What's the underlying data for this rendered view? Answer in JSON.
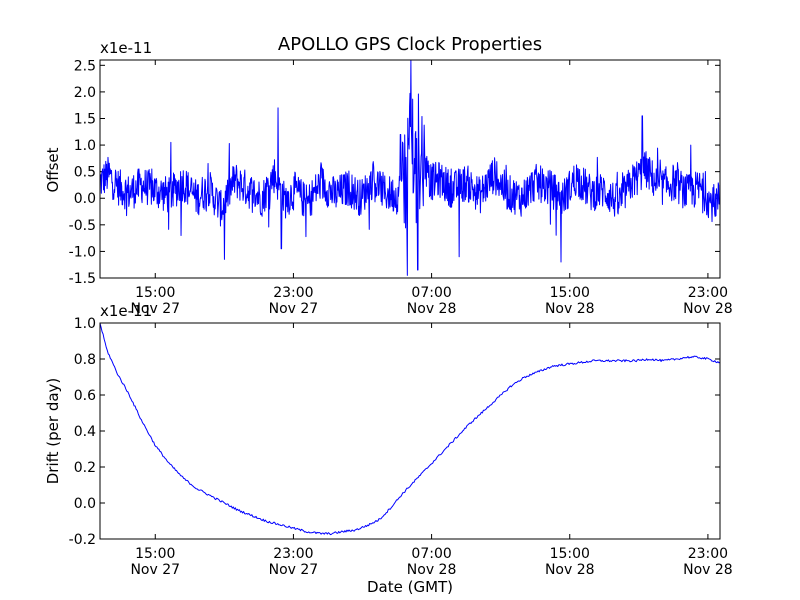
{
  "title": "APOLLO GPS Clock Properties",
  "colors": {
    "series": "#0000ff",
    "axes": "#000000",
    "background": "#ffffff"
  },
  "chart_data": [
    {
      "type": "line",
      "title": "APOLLO GPS Clock Properties",
      "ylabel": "Offset",
      "xlabel": "",
      "multiplier": "x1e-11",
      "x_ticks": [
        {
          "hour": 15,
          "time": "15:00",
          "date": "Nov 27"
        },
        {
          "hour": 23,
          "time": "23:00",
          "date": "Nov 27"
        },
        {
          "hour": 31,
          "time": "07:00",
          "date": "Nov 28"
        },
        {
          "hour": 39,
          "time": "15:00",
          "date": "Nov 28"
        },
        {
          "hour": 47,
          "time": "23:00",
          "date": "Nov 28"
        }
      ],
      "xlim_hours_from_nov27_midnight": [
        11.8,
        47.7
      ],
      "ylim": [
        -1.5,
        2.6
      ],
      "y_ticks": [
        -1.5,
        -1.0,
        -0.5,
        0.0,
        0.5,
        1.0,
        1.5,
        2.0,
        2.5
      ],
      "y_tick_labels": [
        "-1.5",
        "-1.0",
        "-0.5",
        "0.0",
        "0.5",
        "1.0",
        "1.5",
        "2.0",
        "2.5"
      ],
      "series": [
        {
          "color": "#0000ff",
          "x": [
            11.8,
            12.3,
            12.9,
            13.5,
            14.2,
            15.0,
            15.8,
            16.6,
            17.4,
            18.1,
            18.8,
            19.6,
            20.4,
            21.2,
            21.9,
            22.5,
            23.1,
            23.8,
            24.6,
            25.4,
            26.2,
            26.9,
            27.6,
            28.3,
            29.0,
            29.5,
            29.8,
            30.1,
            30.4,
            30.9,
            31.5,
            32.2,
            33.0,
            33.8,
            34.6,
            35.4,
            36.2,
            37.0,
            37.8,
            38.6,
            39.4,
            40.2,
            41.0,
            41.8,
            42.6,
            43.4,
            44.2,
            45.0,
            45.8,
            46.6,
            47.2,
            47.7
          ],
          "values": [
            0.3,
            0.45,
            0.2,
            0.1,
            0.25,
            0.15,
            0.05,
            0.3,
            0.0,
            0.2,
            -0.2,
            0.35,
            0.15,
            0.0,
            0.45,
            -0.05,
            0.15,
            -0.1,
            0.3,
            0.05,
            0.2,
            0.0,
            0.35,
            0.1,
            0.05,
            0.4,
            1.2,
            0.6,
            0.9,
            0.3,
            0.35,
            0.15,
            0.3,
            0.05,
            0.45,
            0.1,
            0.0,
            0.3,
            0.2,
            0.0,
            0.4,
            0.1,
            0.15,
            -0.1,
            0.3,
            0.55,
            0.2,
            0.3,
            0.1,
            0.2,
            -0.1,
            0.0
          ],
          "noise_amplitude_typical": 0.35,
          "spikes": [
            {
              "x": 15.9,
              "value": 1.05
            },
            {
              "x": 16.5,
              "value": -0.7
            },
            {
              "x": 19.0,
              "value": -1.15
            },
            {
              "x": 22.1,
              "value": 1.7
            },
            {
              "x": 22.3,
              "value": -0.95
            },
            {
              "x": 29.8,
              "value": 2.6
            },
            {
              "x": 29.6,
              "value": -1.45
            },
            {
              "x": 30.2,
              "value": -1.35
            },
            {
              "x": 29.2,
              "value": 1.2
            },
            {
              "x": 32.6,
              "value": -1.1
            },
            {
              "x": 38.5,
              "value": -1.2
            },
            {
              "x": 43.2,
              "value": 1.55
            },
            {
              "x": 46.0,
              "value": 1.0
            }
          ]
        }
      ]
    },
    {
      "type": "line",
      "title": "",
      "ylabel": "Drift (per day)",
      "xlabel": "Date (GMT)",
      "multiplier": "x1e-11",
      "x_ticks": [
        {
          "hour": 15,
          "time": "15:00",
          "date": "Nov 27"
        },
        {
          "hour": 23,
          "time": "23:00",
          "date": "Nov 27"
        },
        {
          "hour": 31,
          "time": "07:00",
          "date": "Nov 28"
        },
        {
          "hour": 39,
          "time": "15:00",
          "date": "Nov 28"
        },
        {
          "hour": 47,
          "time": "23:00",
          "date": "Nov 28"
        }
      ],
      "xlim_hours_from_nov27_midnight": [
        11.8,
        47.7
      ],
      "ylim": [
        -0.2,
        1.0
      ],
      "y_ticks": [
        -0.2,
        0.0,
        0.2,
        0.4,
        0.6,
        0.8,
        1.0
      ],
      "y_tick_labels": [
        "-0.2",
        "0.0",
        "0.2",
        "0.4",
        "0.6",
        "0.8",
        "1.0"
      ],
      "series": [
        {
          "color": "#0000ff",
          "x": [
            11.8,
            12.2,
            12.8,
            13.5,
            14.2,
            15.0,
            15.8,
            16.6,
            17.4,
            18.2,
            19.0,
            19.8,
            20.6,
            21.4,
            22.2,
            23.0,
            23.8,
            24.6,
            25.2,
            25.8,
            26.6,
            27.4,
            28.0,
            28.6,
            29.3,
            30.0,
            30.8,
            31.6,
            32.4,
            33.2,
            34.0,
            34.8,
            35.6,
            36.4,
            37.2,
            38.0,
            38.8,
            39.6,
            40.4,
            41.2,
            42.0,
            42.8,
            43.6,
            44.4,
            45.2,
            45.8,
            46.4,
            47.0,
            47.7
          ],
          "values": [
            1.0,
            0.85,
            0.72,
            0.6,
            0.46,
            0.32,
            0.22,
            0.14,
            0.08,
            0.04,
            0.0,
            -0.04,
            -0.07,
            -0.1,
            -0.12,
            -0.14,
            -0.16,
            -0.17,
            -0.17,
            -0.16,
            -0.15,
            -0.12,
            -0.09,
            -0.03,
            0.05,
            0.12,
            0.2,
            0.28,
            0.36,
            0.44,
            0.51,
            0.58,
            0.65,
            0.7,
            0.73,
            0.76,
            0.77,
            0.78,
            0.79,
            0.79,
            0.79,
            0.79,
            0.8,
            0.79,
            0.8,
            0.81,
            0.81,
            0.8,
            0.78
          ]
        }
      ]
    }
  ]
}
